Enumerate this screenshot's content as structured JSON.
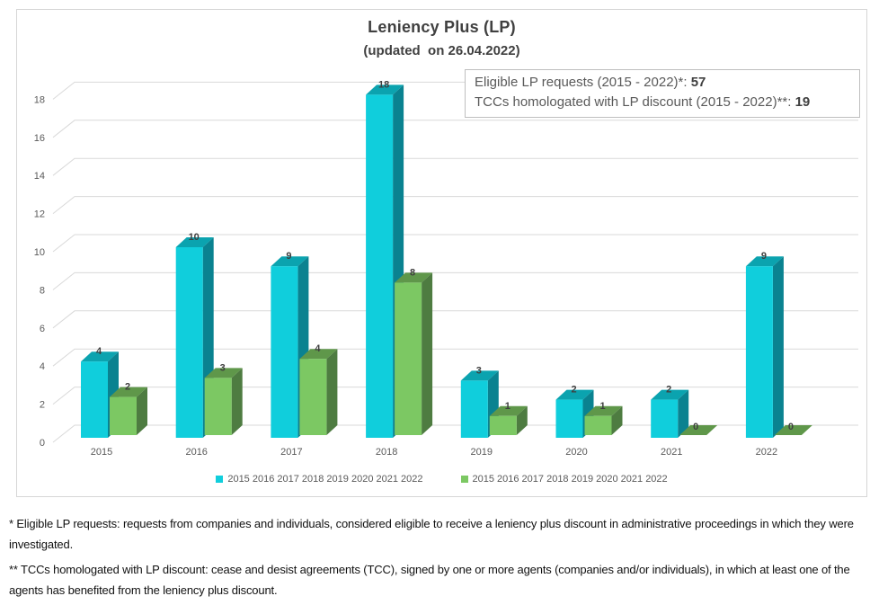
{
  "title": "Leniency Plus (LP)",
  "subtitle": "(updated  on 26.04.2022)",
  "annotation": {
    "line1_label": "Eligible LP requests (2015 - 2022)*: ",
    "line1_value": "57",
    "line2_label": "TCCs homologated with LP discount (2015 - 2022)**: ",
    "line2_value": "19"
  },
  "chart_data": {
    "type": "bar",
    "style": "3d-clustered-column",
    "title": "Leniency Plus (LP)",
    "subtitle": "(updated  on 26.04.2022)",
    "categories": [
      "2015",
      "2016",
      "2017",
      "2018",
      "2019",
      "2020",
      "2021",
      "2022"
    ],
    "series": [
      {
        "name": "2015 2016 2017 2018 2019 2020 2021 2022",
        "values": [
          4,
          10,
          9,
          18,
          3,
          2,
          2,
          9
        ],
        "color": "#10CEDC",
        "color_side": "#0A8290",
        "color_top": "#0BA3AF"
      },
      {
        "name": "2015 2016 2017 2018 2019 2020 2021 2022",
        "values": [
          2,
          3,
          4,
          8,
          1,
          1,
          0,
          0
        ],
        "color": "#7CC863",
        "color_side": "#4E7C41",
        "color_top": "#5F974A"
      }
    ],
    "yticks": [
      0,
      2,
      4,
      6,
      8,
      10,
      12,
      14,
      16,
      18
    ],
    "ylim": [
      0,
      18
    ],
    "grid": true,
    "legend_position": "bottom",
    "colors": {
      "grid": "#d9d9d9",
      "tick_label": "#595959",
      "category_label": "#595959",
      "data_label": "#3f3f3f"
    }
  },
  "footnotes": [
    "* Eligible LP requests: requests from companies and individuals, considered eligible to receive a leniency plus discount in administrative proceedings in which they were investigated.",
    "** TCCs homologated with LP discount: cease and desist agreements (TCC), signed by one or more agents (companies and/or individuals), in which at least one of the agents has benefited from the leniency plus discount."
  ]
}
